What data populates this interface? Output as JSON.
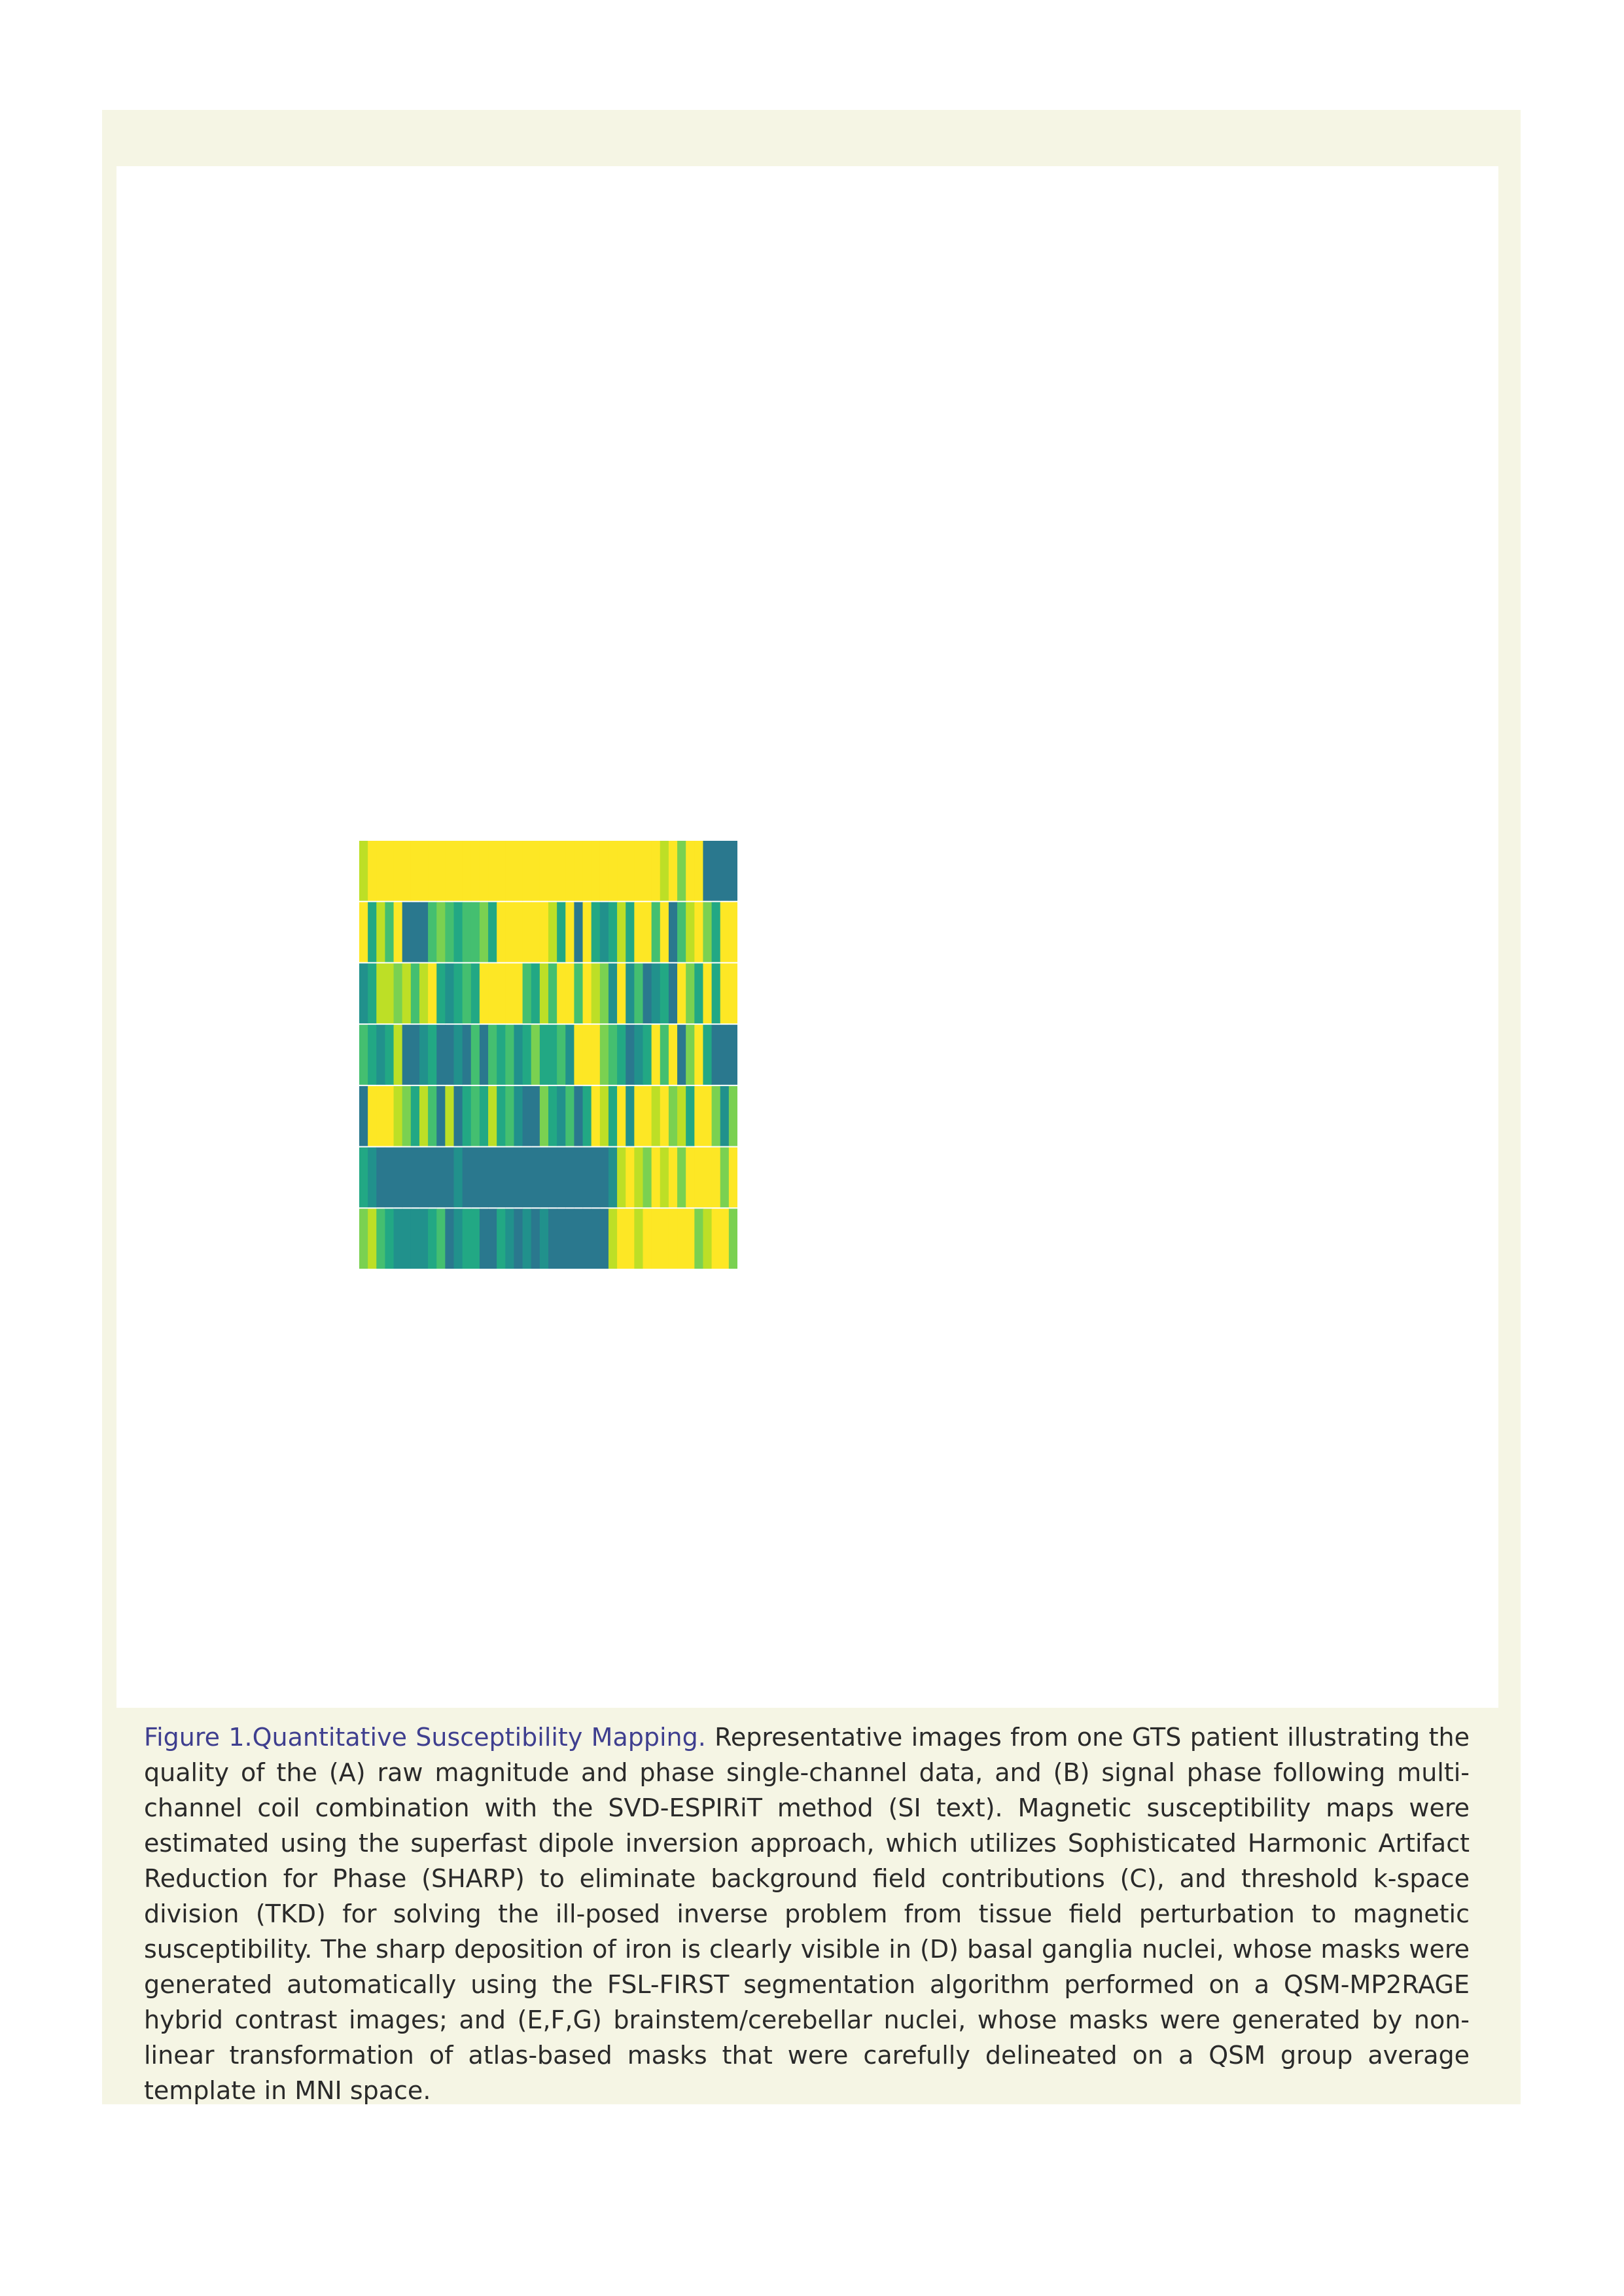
{
  "figure": {
    "label": "Figure 1.Quantitative Susceptibility Mapping.",
    "caption": " Representative images from one GTS patient illustrating the quality of the (A) raw magnitude and phase single-channel data, and (B) signal phase following multi-channel coil combination with the SVD-ESPIRiT method (SI text). Magnetic susceptibility maps were estimated using the superfast dipole inversion approach, which utilizes Sophisticated Harmonic Artifact Reduction for Phase (SHARP) to eliminate background field contributions (C), and threshold k-space division (TKD) for solving the ill-posed inverse problem from tissue field perturbation to magnetic susceptibility. The sharp deposition of iron is clearly visible in (D) basal ganglia nuclei, whose masks were generated automatically using the FSL-FIRST segmentation algorithm performed on a QSM-MP2RAGE hybrid contrast images; and (E,F,G) brainstem/cerebellar nuclei, whose masks were generated by non-linear transformation of atlas-based masks that were carefully delineated on a QSM group average template in MNI space."
  },
  "colors": {
    "frame": "#f5f5e4",
    "label": "#3f3f8f",
    "text": "#2a2a2a",
    "colormap": [
      "#2a788e",
      "#21918c",
      "#22a884",
      "#44bf70",
      "#7ad151",
      "#bddf26",
      "#fde725"
    ]
  },
  "chart_data": {
    "type": "heatmap",
    "rows": 7,
    "cols": 44,
    "values": [
      [
        5,
        6,
        6,
        6,
        6,
        6,
        6,
        6,
        6,
        6,
        6,
        6,
        6,
        6,
        6,
        6,
        6,
        6,
        6,
        6,
        6,
        6,
        6,
        6,
        6,
        6,
        6,
        6,
        6,
        6,
        6,
        6,
        6,
        6,
        6,
        5,
        6,
        4,
        6,
        6,
        0,
        0,
        0,
        0
      ],
      [
        6,
        2,
        5,
        3,
        6,
        0,
        0,
        0,
        3,
        4,
        3,
        2,
        3,
        3,
        4,
        2,
        6,
        6,
        6,
        6,
        6,
        6,
        5,
        2,
        6,
        0,
        6,
        2,
        1,
        2,
        5,
        2,
        6,
        6,
        3,
        6,
        0,
        3,
        5,
        6,
        4,
        2,
        6,
        6
      ],
      [
        1,
        2,
        5,
        5,
        4,
        5,
        3,
        5,
        6,
        2,
        1,
        2,
        3,
        2,
        6,
        6,
        6,
        6,
        6,
        3,
        2,
        5,
        3,
        6,
        6,
        3,
        6,
        5,
        4,
        1,
        6,
        1,
        3,
        0,
        1,
        2,
        0,
        6,
        4,
        2,
        6,
        2,
        6,
        6
      ],
      [
        3,
        2,
        1,
        2,
        5,
        0,
        0,
        1,
        2,
        0,
        0,
        1,
        0,
        3,
        0,
        3,
        2,
        3,
        1,
        2,
        4,
        2,
        2,
        3,
        1,
        6,
        6,
        6,
        4,
        3,
        2,
        0,
        1,
        2,
        6,
        3,
        6,
        0,
        4,
        6,
        2,
        0,
        0,
        0
      ],
      [
        0,
        6,
        6,
        6,
        5,
        4,
        2,
        5,
        3,
        0,
        5,
        0,
        2,
        3,
        2,
        5,
        2,
        3,
        1,
        0,
        0,
        4,
        2,
        1,
        3,
        0,
        2,
        6,
        5,
        2,
        6,
        1,
        6,
        6,
        5,
        6,
        4,
        5,
        2,
        6,
        6,
        4,
        1,
        4
      ],
      [
        2,
        1,
        0,
        0,
        0,
        0,
        0,
        0,
        0,
        0,
        0,
        1,
        0,
        0,
        0,
        0,
        0,
        0,
        0,
        0,
        0,
        0,
        0,
        0,
        0,
        0,
        0,
        0,
        0,
        1,
        5,
        6,
        5,
        4,
        6,
        5,
        6,
        4,
        6,
        6,
        6,
        6,
        4,
        6
      ],
      [
        4,
        5,
        3,
        2,
        1,
        1,
        1,
        1,
        2,
        3,
        0,
        1,
        2,
        2,
        0,
        0,
        2,
        1,
        0,
        1,
        0,
        1,
        0,
        0,
        0,
        0,
        0,
        0,
        0,
        5,
        6,
        6,
        5,
        6,
        6,
        6,
        6,
        6,
        6,
        4,
        5,
        6,
        6,
        4
      ]
    ]
  }
}
